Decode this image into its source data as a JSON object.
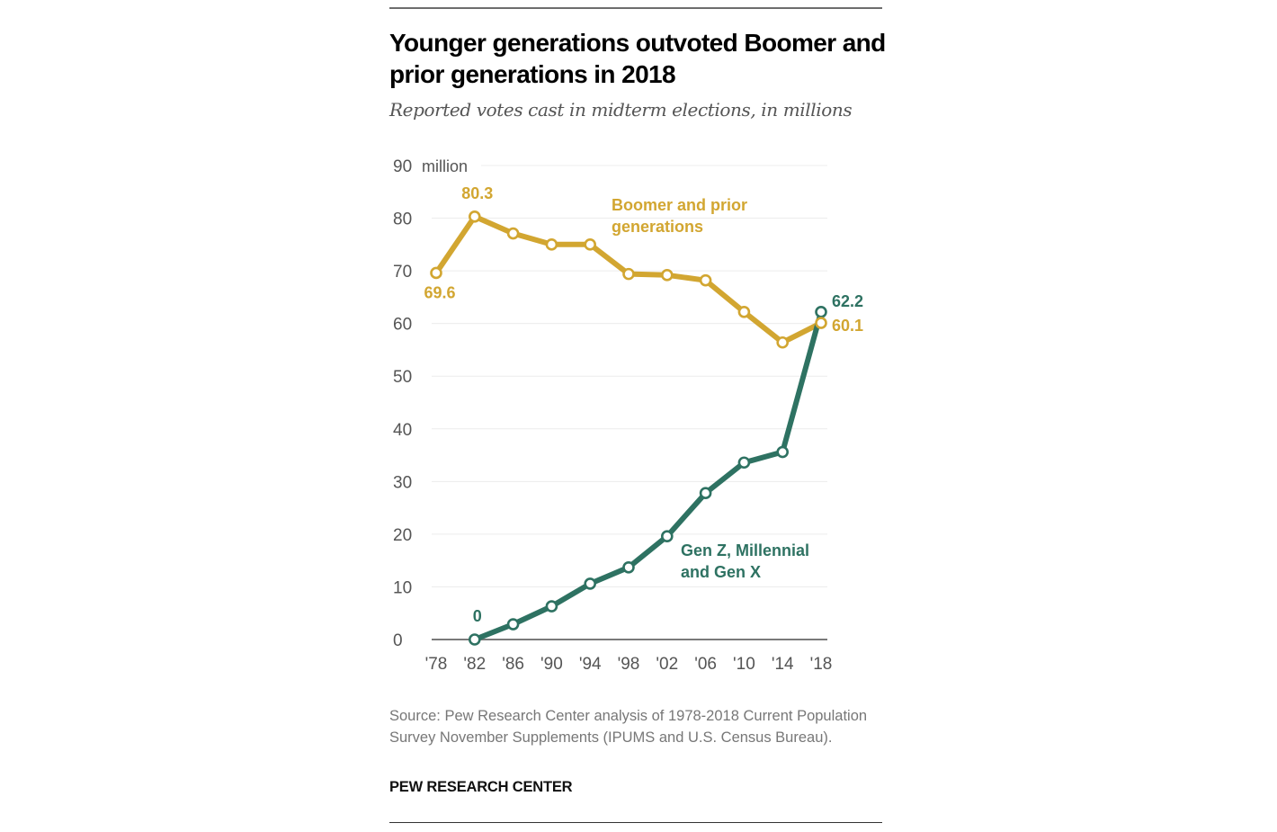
{
  "header": {
    "title": "Younger generations outvoted Boomer and prior generations in 2018",
    "subtitle": "Reported votes cast in midterm elections, in millions"
  },
  "footer": {
    "source": "Source: Pew Research Center analysis of 1978-2018 Current Population Survey November Supplements (IPUMS and U.S. Census Bureau).",
    "organization": "PEW RESEARCH CENTER"
  },
  "chart_data": {
    "type": "line",
    "title": "Younger generations outvoted Boomer and prior generations in 2018",
    "subtitle": "Reported votes cast in midterm elections, in millions",
    "xlabel": "",
    "ylabel": "",
    "y_unit_label": "million",
    "ylim": [
      0,
      90
    ],
    "yticks": [
      0,
      10,
      20,
      30,
      40,
      50,
      60,
      70,
      80,
      90
    ],
    "x": [
      1978,
      1982,
      1986,
      1990,
      1994,
      1998,
      2002,
      2006,
      2010,
      2014,
      2018
    ],
    "xtick_labels": [
      "'78",
      "'82",
      "'86",
      "'90",
      "'94",
      "'98",
      "'02",
      "'06",
      "'10",
      "'14",
      "'18"
    ],
    "grid": true,
    "series": [
      {
        "name": "Boomer and prior generations",
        "color": "#D2A631",
        "values": [
          69.6,
          80.3,
          77.1,
          75.0,
          75.0,
          69.4,
          69.2,
          68.2,
          62.2,
          56.4,
          60.1
        ],
        "labeled_points": [
          {
            "index": 0,
            "text": "69.6",
            "position": "below"
          },
          {
            "index": 1,
            "text": "80.3",
            "position": "above"
          },
          {
            "index": 10,
            "text": "60.1",
            "position": "right"
          }
        ],
        "legend_label_lines": [
          "Boomer and prior",
          "generations"
        ]
      },
      {
        "name": "Gen Z, Millennial and Gen X",
        "color": "#2E7262",
        "values": [
          null,
          0,
          2.9,
          6.3,
          10.6,
          13.7,
          19.6,
          27.8,
          33.6,
          35.6,
          62.2
        ],
        "labeled_points": [
          {
            "index": 1,
            "text": "0",
            "position": "above"
          },
          {
            "index": 10,
            "text": "62.2",
            "position": "right"
          }
        ],
        "legend_label_lines": [
          "Gen Z, Millennial",
          "and Gen X"
        ]
      }
    ],
    "colors": {
      "gridline": "#ececec",
      "baseline": "#7a7a7a",
      "tick_text": "#555555"
    }
  }
}
